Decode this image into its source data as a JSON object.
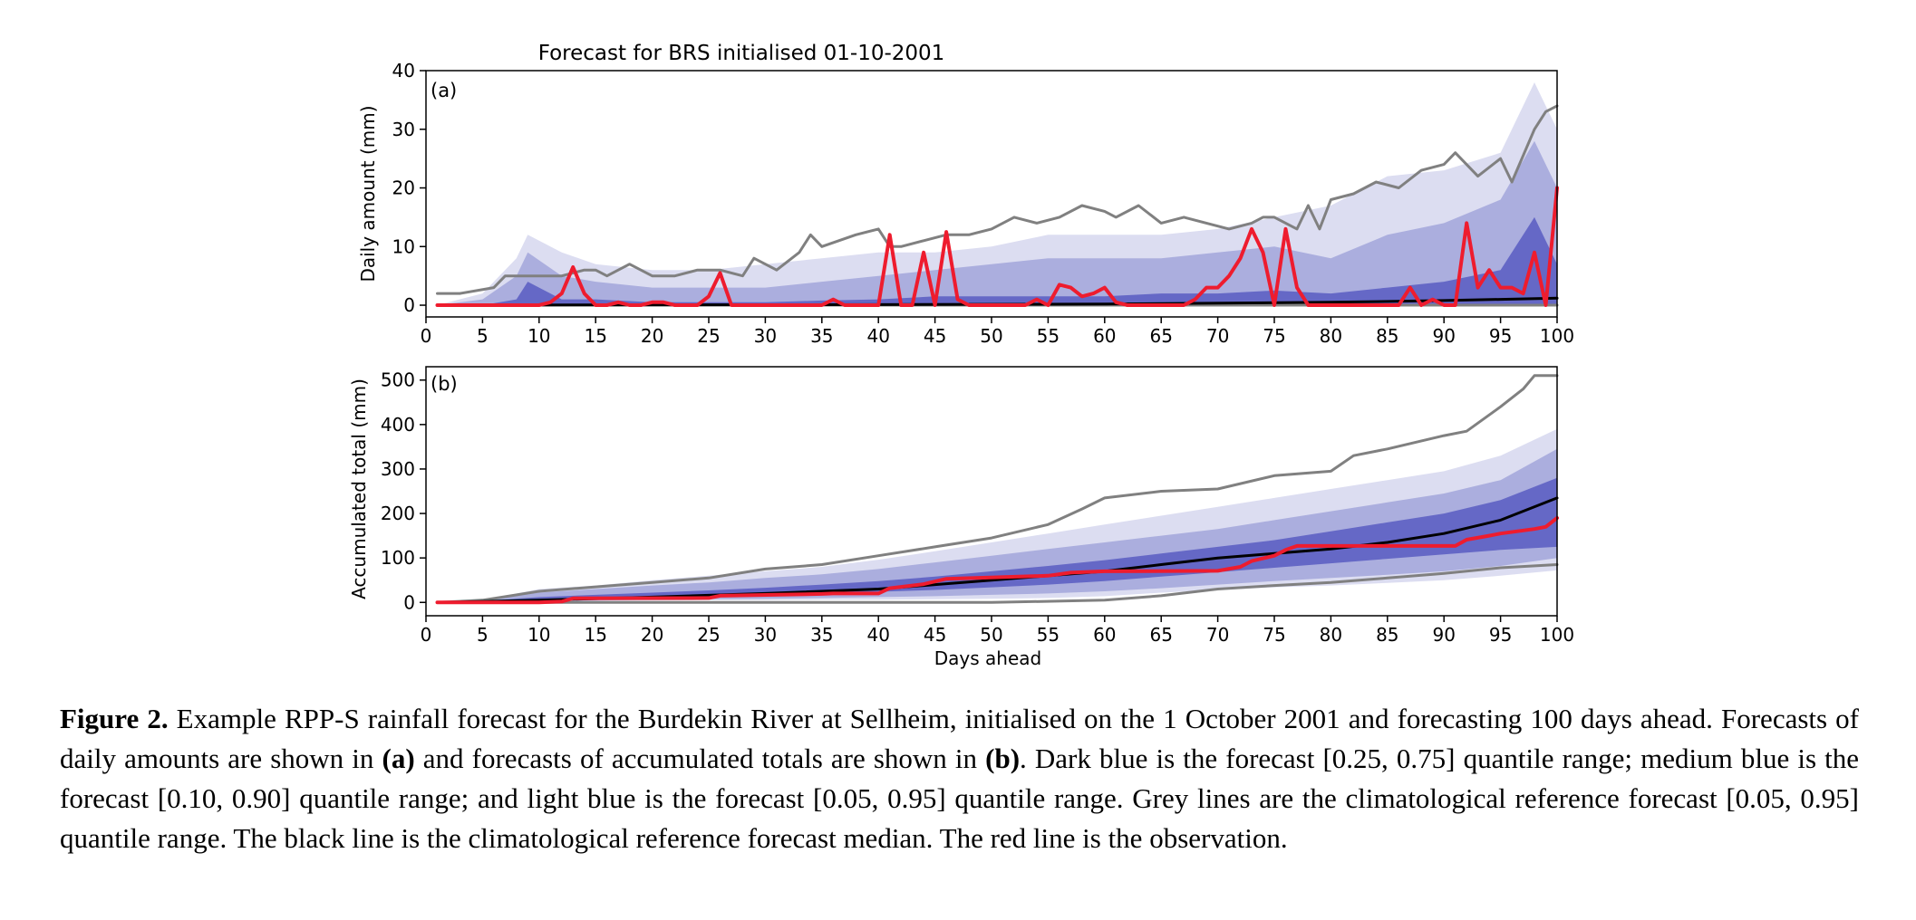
{
  "figure_title": "Forecast for BRS initialised 01-10-2001",
  "colors": {
    "dark_blue": "#6568c6",
    "medium_blue": "#abaede",
    "light_blue": "#dcddf1",
    "grey": "#808080",
    "black": "#000000",
    "red": "#ee1c2e"
  },
  "chart_data": [
    {
      "panel_label": "(a)",
      "type": "area",
      "ylabel": "Daily amount (mm)",
      "xlabel": "",
      "xlim": [
        0,
        100
      ],
      "ylim": [
        -2,
        40
      ],
      "x_ticks": [
        0,
        5,
        10,
        15,
        20,
        25,
        30,
        35,
        40,
        45,
        50,
        55,
        60,
        65,
        70,
        75,
        80,
        85,
        90,
        95,
        100
      ],
      "y_ticks": [
        0,
        10,
        20,
        30,
        40
      ],
      "bands": [
        {
          "quantile_range": "[0.05, 0.95]",
          "color": "light_blue",
          "x": [
            1,
            5,
            8,
            9,
            12,
            15,
            20,
            25,
            30,
            35,
            40,
            45,
            50,
            55,
            60,
            65,
            70,
            75,
            80,
            85,
            90,
            95,
            98,
            100
          ],
          "low": [
            0,
            0,
            0,
            0,
            0,
            0,
            0,
            0,
            0,
            0,
            0,
            0,
            0,
            0,
            0,
            0,
            0,
            0,
            0,
            0,
            0,
            0,
            0,
            0
          ],
          "high": [
            0,
            2,
            8,
            12,
            9,
            7,
            6,
            6,
            7,
            8,
            9,
            9,
            10,
            12,
            12,
            12,
            13,
            15,
            17,
            22,
            23,
            26,
            38,
            30
          ]
        },
        {
          "quantile_range": "[0.10, 0.90]",
          "color": "medium_blue",
          "x": [
            1,
            5,
            8,
            9,
            12,
            15,
            20,
            25,
            30,
            35,
            40,
            45,
            50,
            55,
            60,
            65,
            70,
            75,
            80,
            85,
            90,
            95,
            98,
            100
          ],
          "low": [
            0,
            0,
            0,
            0,
            0,
            0,
            0,
            0,
            0,
            0,
            0,
            0,
            0,
            0,
            0,
            0,
            0,
            0,
            0,
            0,
            0,
            0,
            0,
            0
          ],
          "high": [
            0,
            1,
            5,
            9,
            5,
            4,
            3,
            3,
            3,
            4,
            5,
            6,
            7,
            8,
            8,
            8,
            9,
            10,
            8,
            12,
            14,
            18,
            28,
            20
          ]
        },
        {
          "quantile_range": "[0.25, 0.75]",
          "color": "dark_blue",
          "x": [
            1,
            5,
            8,
            9,
            12,
            15,
            20,
            25,
            30,
            35,
            40,
            45,
            50,
            55,
            60,
            65,
            70,
            75,
            80,
            85,
            90,
            95,
            98,
            100
          ],
          "low": [
            0,
            0,
            0,
            0,
            0,
            0,
            0,
            0,
            0,
            0,
            0,
            0,
            0,
            0,
            0,
            0,
            0,
            0,
            0,
            0,
            0,
            0,
            0,
            0
          ],
          "high": [
            0,
            0,
            1,
            4,
            1,
            1,
            0.5,
            0.5,
            0.5,
            0.8,
            1,
            1.5,
            1.5,
            1.5,
            1.5,
            2,
            2,
            2.5,
            2,
            3,
            4,
            6,
            15,
            7
          ]
        }
      ],
      "series": [
        {
          "name": "climatological reference [0.95]",
          "color": "grey",
          "x": [
            1,
            3,
            6,
            7,
            10,
            12,
            14,
            15,
            16,
            18,
            20,
            22,
            24,
            26,
            28,
            29,
            30,
            31,
            33,
            34,
            35,
            38,
            40,
            41,
            42,
            44,
            46,
            48,
            50,
            52,
            54,
            56,
            58,
            60,
            61,
            63,
            65,
            67,
            69,
            71,
            73,
            74,
            75,
            77,
            78,
            79,
            80,
            82,
            84,
            86,
            88,
            90,
            91,
            93,
            95,
            96,
            98,
            99,
            100
          ],
          "y": [
            2,
            2,
            3,
            5,
            5,
            5,
            6,
            6,
            5,
            7,
            5,
            5,
            6,
            6,
            5,
            8,
            7,
            6,
            9,
            12,
            10,
            12,
            13,
            10,
            10,
            11,
            12,
            12,
            13,
            15,
            14,
            15,
            17,
            16,
            15,
            17,
            14,
            15,
            14,
            13,
            14,
            15,
            15,
            13,
            17,
            13,
            18,
            19,
            21,
            20,
            23,
            24,
            26,
            22,
            25,
            21,
            30,
            33,
            34
          ]
        },
        {
          "name": "climatological reference [0.05]",
          "color": "grey",
          "x": [
            1,
            100
          ],
          "y": [
            0,
            0
          ]
        },
        {
          "name": "climatological reference median",
          "color": "black",
          "x": [
            1,
            40,
            60,
            80,
            90,
            95,
            100
          ],
          "y": [
            0,
            0.1,
            0.2,
            0.5,
            0.8,
            1,
            1.2
          ]
        },
        {
          "name": "observation",
          "color": "red",
          "x": [
            1,
            10,
            11,
            12,
            13,
            14,
            15,
            16,
            17,
            18,
            19,
            20,
            21,
            22,
            23,
            24,
            25,
            26,
            27,
            30,
            35,
            36,
            37,
            40,
            41,
            42,
            43,
            44,
            45,
            46,
            47,
            48,
            50,
            53,
            54,
            55,
            56,
            57,
            58,
            59,
            60,
            61,
            62,
            63,
            64,
            65,
            66,
            67,
            68,
            69,
            70,
            71,
            72,
            73,
            74,
            75,
            76,
            77,
            78,
            80,
            85,
            86,
            87,
            88,
            89,
            90,
            91,
            92,
            93,
            94,
            95,
            96,
            97,
            98,
            99,
            100
          ],
          "y": [
            0,
            0,
            0.5,
            2,
            6.5,
            2,
            0,
            0,
            0.5,
            0,
            0,
            0.5,
            0.5,
            0,
            0,
            0,
            1.5,
            5.5,
            0,
            0,
            0,
            1,
            0,
            0,
            12,
            0,
            0,
            9,
            0,
            12.5,
            1,
            0,
            0,
            0,
            1,
            0,
            3.5,
            3,
            1.5,
            2,
            3,
            0.5,
            0,
            0,
            0,
            0,
            0,
            0,
            1,
            3,
            3,
            5,
            8,
            13,
            9,
            0,
            13,
            3,
            0,
            0,
            0,
            0,
            3,
            0,
            1,
            0,
            0,
            14,
            3,
            6,
            3,
            3,
            2,
            9,
            0,
            20
          ]
        }
      ]
    },
    {
      "panel_label": "(b)",
      "type": "area",
      "ylabel": "Accumulated total (mm)",
      "xlabel": "Days ahead",
      "xlim": [
        0,
        100
      ],
      "ylim": [
        -30,
        530
      ],
      "x_ticks": [
        0,
        5,
        10,
        15,
        20,
        25,
        30,
        35,
        40,
        45,
        50,
        55,
        60,
        65,
        70,
        75,
        80,
        85,
        90,
        95,
        100
      ],
      "y_ticks": [
        0,
        100,
        200,
        300,
        400,
        500
      ],
      "bands": [
        {
          "quantile_range": "[0.05, 0.95]",
          "color": "light_blue",
          "x": [
            1,
            5,
            10,
            15,
            20,
            25,
            30,
            35,
            40,
            45,
            50,
            55,
            60,
            65,
            70,
            75,
            80,
            85,
            90,
            95,
            100
          ],
          "low": [
            0,
            1,
            2,
            3,
            4,
            5,
            5,
            6,
            6,
            7,
            8,
            10,
            14,
            22,
            28,
            34,
            38,
            44,
            50,
            60,
            72
          ],
          "high": [
            0,
            5,
            30,
            38,
            50,
            60,
            70,
            80,
            96,
            115,
            135,
            155,
            175,
            195,
            215,
            235,
            255,
            275,
            295,
            330,
            390
          ]
        },
        {
          "quantile_range": "[0.10, 0.90]",
          "color": "medium_blue",
          "x": [
            1,
            5,
            10,
            15,
            20,
            25,
            30,
            35,
            40,
            45,
            50,
            55,
            60,
            65,
            70,
            75,
            80,
            85,
            90,
            95,
            100
          ],
          "low": [
            0,
            1,
            3,
            4,
            6,
            7,
            8,
            10,
            12,
            14,
            17,
            20,
            25,
            32,
            40,
            48,
            55,
            62,
            70,
            82,
            100
          ],
          "high": [
            0,
            4,
            22,
            30,
            38,
            45,
            55,
            63,
            75,
            90,
            105,
            120,
            135,
            150,
            165,
            185,
            205,
            225,
            245,
            275,
            345
          ]
        },
        {
          "quantile_range": "[0.25, 0.75]",
          "color": "dark_blue",
          "x": [
            1,
            5,
            10,
            15,
            20,
            25,
            30,
            35,
            40,
            45,
            50,
            55,
            60,
            65,
            70,
            75,
            80,
            85,
            90,
            95,
            100
          ],
          "low": [
            0,
            2,
            6,
            9,
            12,
            14,
            17,
            20,
            24,
            28,
            34,
            40,
            48,
            58,
            68,
            78,
            88,
            98,
            108,
            118,
            125
          ],
          "high": [
            0,
            3,
            12,
            17,
            22,
            27,
            33,
            40,
            48,
            58,
            70,
            82,
            95,
            110,
            125,
            140,
            160,
            180,
            200,
            230,
            280
          ]
        }
      ],
      "series": [
        {
          "name": "climatological reference [0.95]",
          "color": "grey",
          "x": [
            1,
            5,
            10,
            15,
            20,
            25,
            30,
            35,
            40,
            45,
            50,
            55,
            58,
            60,
            65,
            70,
            75,
            80,
            82,
            85,
            90,
            92,
            95,
            97,
            98,
            100
          ],
          "y": [
            0,
            5,
            25,
            35,
            45,
            55,
            75,
            85,
            105,
            125,
            145,
            175,
            210,
            235,
            250,
            255,
            285,
            295,
            330,
            345,
            375,
            385,
            440,
            480,
            510,
            510
          ]
        },
        {
          "name": "climatological reference [0.05]",
          "color": "grey",
          "x": [
            1,
            10,
            20,
            30,
            40,
            50,
            60,
            65,
            70,
            75,
            80,
            85,
            90,
            95,
            100
          ],
          "y": [
            0,
            0,
            0,
            0,
            0,
            0,
            5,
            15,
            30,
            38,
            45,
            55,
            65,
            78,
            85
          ]
        },
        {
          "name": "climatological reference median",
          "color": "black",
          "x": [
            1,
            10,
            20,
            30,
            40,
            50,
            60,
            65,
            70,
            75,
            80,
            85,
            90,
            95,
            100
          ],
          "y": [
            0,
            5,
            12,
            20,
            30,
            50,
            70,
            85,
            100,
            110,
            120,
            135,
            155,
            185,
            235
          ]
        },
        {
          "name": "observation",
          "color": "red",
          "x": [
            1,
            10,
            12,
            13,
            25,
            26,
            35,
            36,
            40,
            41,
            44,
            46,
            55,
            57,
            60,
            70,
            72,
            73,
            75,
            76,
            77,
            91,
            92,
            94,
            95,
            98,
            99,
            100
          ],
          "y": [
            0,
            0,
            2,
            9,
            10,
            15,
            19,
            20,
            20,
            32,
            41,
            53,
            60,
            67,
            70,
            71,
            80,
            93,
            105,
            118,
            127,
            127,
            141,
            150,
            155,
            165,
            170,
            190
          ]
        }
      ]
    }
  ],
  "caption": {
    "fig_label": "Figure 2.",
    "part1": " Example RPP-S rainfall forecast for the Burdekin River at Sellheim, initialised on the 1 October 2001 and forecasting 100 days ahead. Forecasts of daily amounts are shown in ",
    "ref_a": "(a)",
    "part2": " and forecasts of accumulated totals are shown in ",
    "ref_b": "(b)",
    "part3": ". Dark blue is the forecast [0.25, 0.75] quantile range; medium blue is the forecast [0.10, 0.90] quantile range; and light blue is the forecast [0.05, 0.95] quantile range. Grey lines are the climatological reference forecast [0.05, 0.95] quantile range. The black line is the climatological reference forecast median. The red line is the observation."
  }
}
